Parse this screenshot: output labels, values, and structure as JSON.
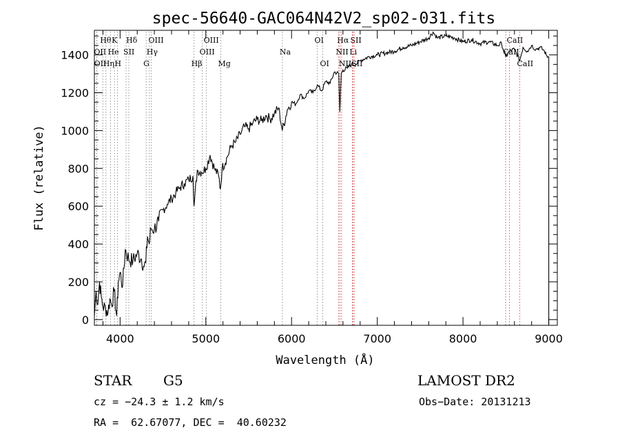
{
  "chart_data": {
    "type": "line",
    "title": "spec-56640-GAC064N42V2_sp02-031.fits",
    "xlabel": "Wavelength (Å)",
    "ylabel": "Flux (relative)",
    "xlim": [
      3700,
      9100
    ],
    "ylim": [
      -30,
      1530
    ],
    "xticks": [
      "4000",
      "5000",
      "6000",
      "7000",
      "8000",
      "9000"
    ],
    "xtick_values": [
      4000,
      5000,
      6000,
      7000,
      8000,
      9000
    ],
    "yticks": [
      "0",
      "200",
      "400",
      "600",
      "800",
      "1000",
      "1200",
      "1400"
    ],
    "ytick_values": [
      0,
      200,
      400,
      600,
      800,
      1000,
      1200,
      1400
    ],
    "grid": false,
    "legend": "none",
    "series": [
      {
        "x": [
          3700,
          3720,
          3740,
          3760,
          3780,
          3800,
          3830,
          3860,
          3880,
          3900,
          3930,
          3960,
          3980,
          4000,
          4030,
          4060,
          4100,
          4150,
          4200,
          4250,
          4280,
          4300,
          4320,
          4340,
          4360,
          4400,
          4450,
          4500,
          4550,
          4600,
          4650,
          4700,
          4750,
          4800,
          4850,
          4862,
          4900,
          4950,
          5000,
          5050,
          5100,
          5150,
          5170,
          5190,
          5250,
          5300,
          5350,
          5400,
          5450,
          5500,
          5550,
          5600,
          5650,
          5700,
          5750,
          5800,
          5850,
          5893,
          5950,
          6000,
          6050,
          6100,
          6150,
          6200,
          6250,
          6300,
          6350,
          6400,
          6450,
          6500,
          6550,
          6563,
          6580,
          6600,
          6650,
          6700,
          6750,
          6800,
          6900,
          7000,
          7100,
          7200,
          7300,
          7400,
          7500,
          7600,
          7650,
          7700,
          7800,
          7900,
          8000,
          8100,
          8200,
          8300,
          8400,
          8450,
          8498,
          8542,
          8600,
          8662,
          8700,
          8750,
          8800,
          8850,
          8900,
          8950,
          8970,
          8990,
          9000
        ],
        "values": [
          20,
          150,
          80,
          200,
          120,
          70,
          60,
          40,
          110,
          80,
          150,
          20,
          200,
          250,
          180,
          370,
          320,
          310,
          350,
          320,
          280,
          300,
          440,
          400,
          480,
          480,
          520,
          580,
          610,
          640,
          670,
          700,
          720,
          740,
          760,
          600,
          790,
          780,
          800,
          870,
          800,
          760,
          690,
          800,
          860,
          920,
          940,
          980,
          1020,
          1010,
          1040,
          1060,
          1050,
          1080,
          1060,
          1090,
          1120,
          1000,
          1110,
          1150,
          1140,
          1190,
          1170,
          1210,
          1200,
          1240,
          1210,
          1260,
          1250,
          1310,
          1300,
          1100,
          1300,
          1320,
          1330,
          1350,
          1350,
          1370,
          1390,
          1400,
          1410,
          1420,
          1440,
          1450,
          1470,
          1490,
          1520,
          1490,
          1500,
          1490,
          1470,
          1480,
          1460,
          1470,
          1450,
          1460,
          1390,
          1420,
          1430,
          1370,
          1440,
          1420,
          1450,
          1430,
          1440,
          1420,
          1400,
          1390,
          1390
        ]
      }
    ],
    "lines": [
      {
        "label": "Hθ",
        "x": 3798,
        "row": 1
      },
      {
        "label": "OII",
        "x": 3727,
        "row": 2
      },
      {
        "label": "OII",
        "x": 3729,
        "row": 3
      },
      {
        "label": "K",
        "x": 3934,
        "row": 1
      },
      {
        "label": "He",
        "x": 3889,
        "row": 2
      },
      {
        "label": "Hη",
        "x": 3835,
        "row": 3
      },
      {
        "label": "H",
        "x": 3968,
        "row": 3
      },
      {
        "label": "Hδ",
        "x": 4102,
        "row": 1
      },
      {
        "label": "SII",
        "x": 4070,
        "row": 2
      },
      {
        "label": "OIII",
        "x": 4363,
        "row": 1
      },
      {
        "label": "Hγ",
        "x": 4341,
        "row": 2
      },
      {
        "label": "G",
        "x": 4304,
        "row": 3
      },
      {
        "label": "Hβ",
        "x": 4862,
        "row": 3
      },
      {
        "label": "OIII",
        "x": 5007,
        "row": 1
      },
      {
        "label": "OIII",
        "x": 4959,
        "row": 2
      },
      {
        "label": "Mg",
        "x": 5175,
        "row": 3
      },
      {
        "label": "Na",
        "x": 5893,
        "row": 2
      },
      {
        "label": "OI",
        "x": 6300,
        "row": 1
      },
      {
        "label": "OI",
        "x": 6364,
        "row": 3
      },
      {
        "label": "Hα",
        "x": 6563,
        "row": 1
      },
      {
        "label": "NII",
        "x": 6548,
        "row": 2
      },
      {
        "label": "NII",
        "x": 6584,
        "row": 3
      },
      {
        "label": "SII",
        "x": 6717,
        "row": 1
      },
      {
        "label": "Li",
        "x": 6708,
        "row": 2
      },
      {
        "label": "SII",
        "x": 6731,
        "row": 3
      },
      {
        "label": "CaII",
        "x": 8542,
        "row": 1
      },
      {
        "label": "CaII",
        "x": 8498,
        "row": 2
      },
      {
        "label": "CaII",
        "x": 8662,
        "row": 3
      }
    ]
  },
  "info": {
    "object_class": "STAR",
    "subclass": "G5",
    "survey": "LAMOST DR2",
    "cz": "cz = −24.3 ± 1.2 km/s",
    "obs_date": "Obs−Date: 20131213",
    "coords": "RA =  62.67077, DEC =  40.60232"
  }
}
